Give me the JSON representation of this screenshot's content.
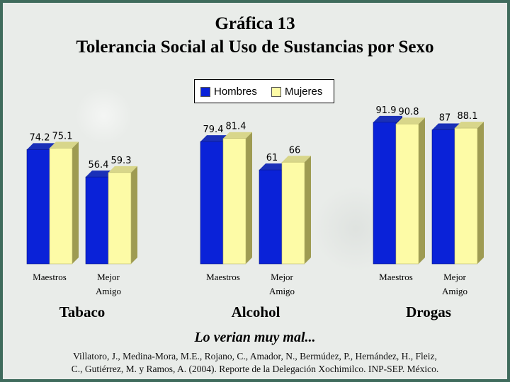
{
  "title": "Gráfica 13",
  "subtitle": "Tolerancia Social al Uso de Sustancias por Sexo",
  "caption": "Lo verian muy mal...",
  "source": [
    "Villatoro, J., Medina-Mora, M.E., Rojano, C., Amador, N., Bermúdez, P., Hernández, H., Fleiz,",
    "C., Gutiérrez, M. y Ramos, A. (2004). Reporte de la Delegación Xochimilco. INP-SEP. México."
  ],
  "colors": {
    "hombres": "#0a22d8",
    "mujeres": "#fdfba6"
  },
  "chart_data": {
    "type": "bar",
    "groups": [
      {
        "name": "Tabaco",
        "categories": [
          [
            "Maestros"
          ],
          [
            "Mejor",
            "Amigo"
          ]
        ],
        "series": [
          {
            "name": "Hombres",
            "values": [
              74.2,
              56.4
            ],
            "labels": [
              "74.2",
              "56.4"
            ]
          },
          {
            "name": "Mujeres",
            "values": [
              75.1,
              59.3
            ],
            "labels": [
              "75.1",
              "59.3"
            ]
          }
        ]
      },
      {
        "name": "Alcohol",
        "categories": [
          [
            "Maestros"
          ],
          [
            "Mejor",
            "Amigo"
          ]
        ],
        "series": [
          {
            "name": "Hombres",
            "values": [
              79.4,
              61
            ],
            "labels": [
              "79.4",
              "61"
            ]
          },
          {
            "name": "Mujeres",
            "values": [
              81.4,
              66
            ],
            "labels": [
              "81.4",
              "66"
            ]
          }
        ]
      },
      {
        "name": "Drogas",
        "categories": [
          [
            "Maestros"
          ],
          [
            "Mejor",
            "Amigo"
          ]
        ],
        "series": [
          {
            "name": "Hombres",
            "values": [
              91.9,
              87
            ],
            "labels": [
              "91.9",
              "87"
            ]
          },
          {
            "name": "Mujeres",
            "values": [
              90.8,
              88.1
            ],
            "labels": [
              "90.8",
              "88.1"
            ]
          }
        ]
      }
    ],
    "legend": [
      "Hombres",
      "Mujeres"
    ],
    "legend_position": "top-center",
    "ylim": [
      0,
      100
    ],
    "grid": false
  }
}
